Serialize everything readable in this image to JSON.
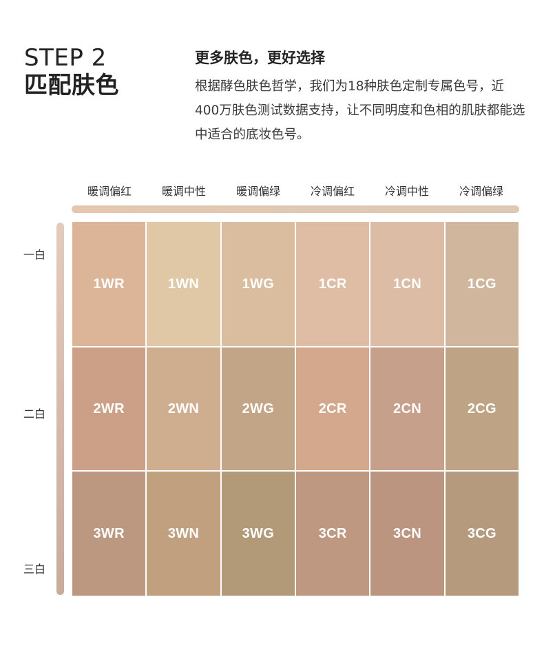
{
  "header": {
    "step_line1": "STEP 2",
    "step_line2": "匹配肤色",
    "subtitle": "更多肤色，更好选择",
    "body": "根据酵色肤色哲学，我们为18种肤色定制专属色号，近400万肤色测试数据支持，让不同明度和色相的肌肤都能选中适合的底妆色号。"
  },
  "columns": [
    "暖调偏红",
    "暖调中性",
    "暖调偏绿",
    "冷调偏红",
    "冷调中性",
    "冷调偏绿"
  ],
  "rows": [
    "一白",
    "二白",
    "三白"
  ],
  "swatches": [
    [
      {
        "code": "1WR",
        "color": "#dcb598"
      },
      {
        "code": "1WN",
        "color": "#e0c8a6"
      },
      {
        "code": "1WG",
        "color": "#d9bd9e"
      },
      {
        "code": "1CR",
        "color": "#dfbca4"
      },
      {
        "code": "1CN",
        "color": "#dcbca4"
      },
      {
        "code": "1CG",
        "color": "#cfb69c"
      }
    ],
    [
      {
        "code": "2WR",
        "color": "#cc9f87"
      },
      {
        "code": "2WN",
        "color": "#cfae8f"
      },
      {
        "code": "2WG",
        "color": "#c2a586"
      },
      {
        "code": "2CR",
        "color": "#d4a88d"
      },
      {
        "code": "2CN",
        "color": "#c7a08b"
      },
      {
        "code": "2CG",
        "color": "#bea385"
      }
    ],
    [
      {
        "code": "3WR",
        "color": "#bc9880"
      },
      {
        "code": "3WN",
        "color": "#c0a07e"
      },
      {
        "code": "3WG",
        "color": "#b29a78"
      },
      {
        "code": "3CR",
        "color": "#be9880"
      },
      {
        "code": "3CN",
        "color": "#bc9581"
      },
      {
        "code": "3CG",
        "color": "#b59a7e"
      }
    ]
  ]
}
